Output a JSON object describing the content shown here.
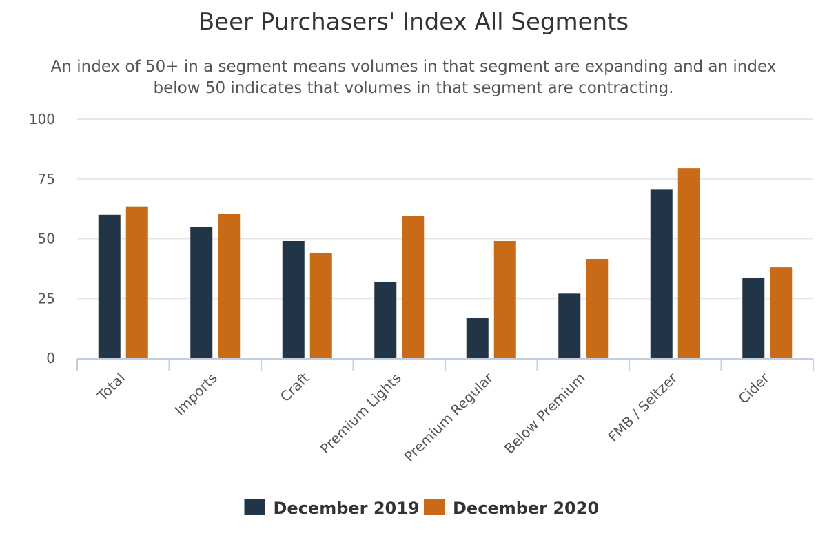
{
  "chart_data": {
    "type": "bar",
    "title": "Beer Purchasers' Index All Segments",
    "subtitle": "An index of 50+ in a segment means volumes in that segment are expanding and an index below 50 indicates that volumes in that segment are contracting.",
    "categories": [
      "Total",
      "Imports",
      "Craft",
      "Premium Lights",
      "Premium Regular",
      "Below Premium",
      "FMB / Seltzer",
      "Cider"
    ],
    "series": [
      {
        "name": "December 2019",
        "color": "#223546",
        "values": [
          60,
          55,
          49,
          32,
          17,
          27,
          70.5,
          33.5
        ]
      },
      {
        "name": "December 2020",
        "color": "#C96A16",
        "values": [
          63.5,
          60.5,
          44,
          59.5,
          49,
          41.5,
          79.5,
          38
        ]
      }
    ],
    "ylim": [
      0,
      100
    ],
    "yticks": [
      0,
      25,
      50,
      75,
      100
    ],
    "grid": true,
    "legend": "bottom-center"
  }
}
